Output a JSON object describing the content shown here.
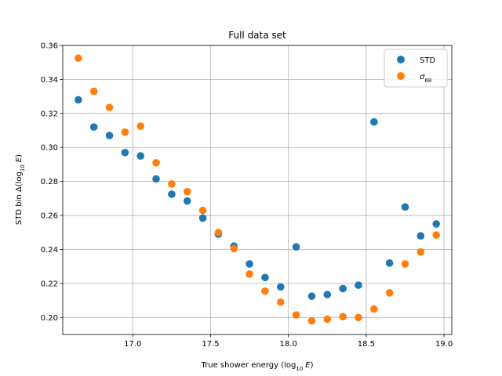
{
  "chart_data": {
    "type": "scatter",
    "title": "Full data set",
    "xlabel_main": "True shower energy (log",
    "xlabel_sub": "10",
    "xlabel_var": "E",
    "xlabel_close": ")",
    "ylabel_main": "STD bin Δ(log",
    "ylabel_sub": "10",
    "ylabel_var": "E",
    "ylabel_close": ")",
    "xlim": [
      16.55,
      19.05
    ],
    "ylim": [
      0.19,
      0.36
    ],
    "xticks": [
      "17.0",
      "17.5",
      "18.0",
      "18.5",
      "19.0"
    ],
    "yticks": [
      "0.20",
      "0.22",
      "0.24",
      "0.26",
      "0.28",
      "0.30",
      "0.32",
      "0.34",
      "0.36"
    ],
    "grid": true,
    "legend_position": "top-right",
    "series": [
      {
        "name": "STD",
        "color": "#1f77b4",
        "x": [
          16.65,
          16.75,
          16.85,
          16.95,
          17.05,
          17.15,
          17.25,
          17.35,
          17.45,
          17.55,
          17.65,
          17.75,
          17.85,
          17.95,
          18.05,
          18.15,
          18.25,
          18.35,
          18.45,
          18.55,
          18.65,
          18.75,
          18.85,
          18.95
        ],
        "y": [
          0.328,
          0.312,
          0.307,
          0.297,
          0.295,
          0.2815,
          0.2725,
          0.2685,
          0.2585,
          0.249,
          0.242,
          0.2315,
          0.2235,
          0.218,
          0.2415,
          0.2125,
          0.2135,
          0.217,
          0.219,
          0.315,
          0.232,
          0.265,
          0.248,
          0.255
        ]
      },
      {
        "name": "σ",
        "name_sub": "68",
        "color": "#ff7f0e",
        "x": [
          16.65,
          16.75,
          16.85,
          16.95,
          17.05,
          17.15,
          17.25,
          17.35,
          17.45,
          17.55,
          17.65,
          17.75,
          17.85,
          17.95,
          18.05,
          18.15,
          18.25,
          18.35,
          18.45,
          18.55,
          18.65,
          18.75,
          18.85,
          18.95
        ],
        "y": [
          0.3525,
          0.333,
          0.3235,
          0.309,
          0.3125,
          0.291,
          0.2785,
          0.274,
          0.263,
          0.25,
          0.2405,
          0.2255,
          0.2155,
          0.209,
          0.2015,
          0.198,
          0.199,
          0.2005,
          0.2,
          0.205,
          0.2145,
          0.2315,
          0.2385,
          0.2485
        ]
      }
    ]
  }
}
